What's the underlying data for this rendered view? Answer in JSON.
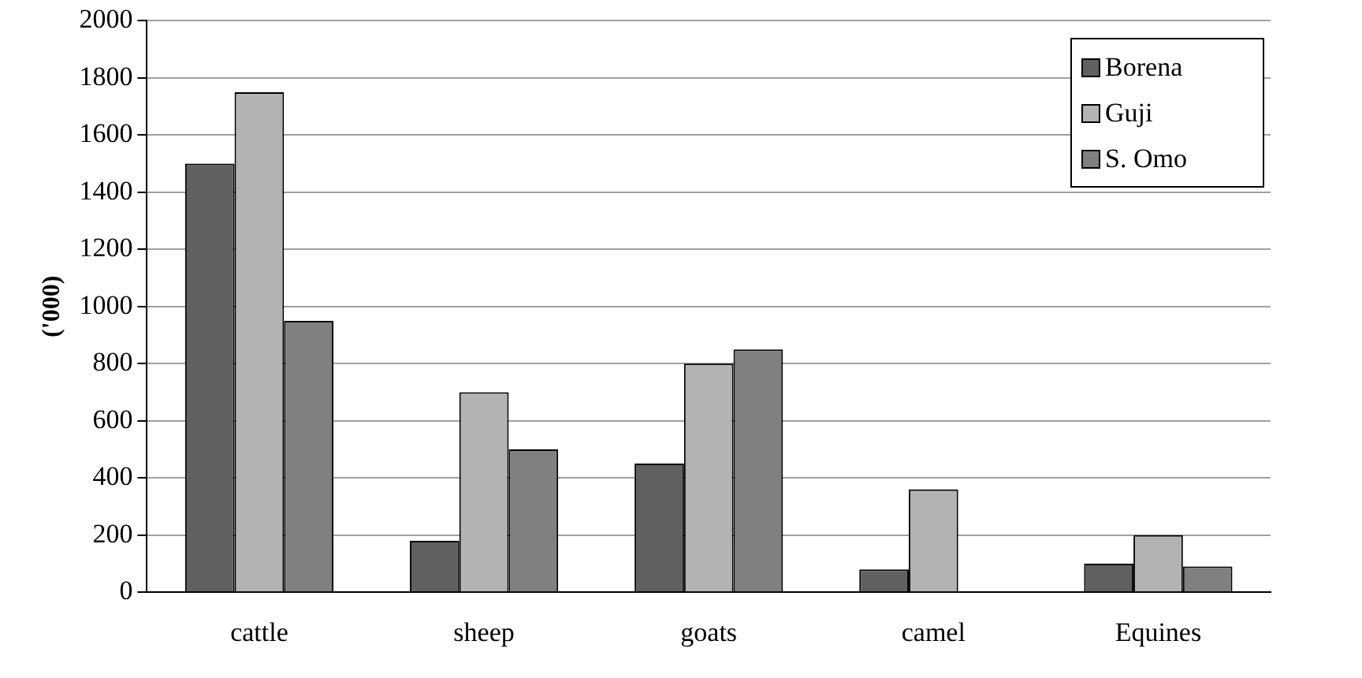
{
  "chart_data": {
    "type": "bar",
    "ylabel": "('000)",
    "categories": [
      "cattle",
      "sheep",
      "goats",
      "camel",
      "Equines"
    ],
    "series": [
      {
        "name": "Borena",
        "color": "#606060",
        "values": [
          1500,
          180,
          450,
          80,
          100
        ]
      },
      {
        "name": "Guji",
        "color": "#b3b3b3",
        "values": [
          1750,
          700,
          800,
          360,
          200
        ]
      },
      {
        "name": "S. Omo",
        "color": "#808080",
        "values": [
          950,
          500,
          850,
          null,
          90
        ]
      }
    ],
    "ylim": [
      0,
      2000
    ],
    "yticks": [
      0,
      200,
      400,
      600,
      800,
      1000,
      1200,
      1400,
      1600,
      1800,
      2000
    ],
    "grid": "y",
    "legend": "top right"
  }
}
